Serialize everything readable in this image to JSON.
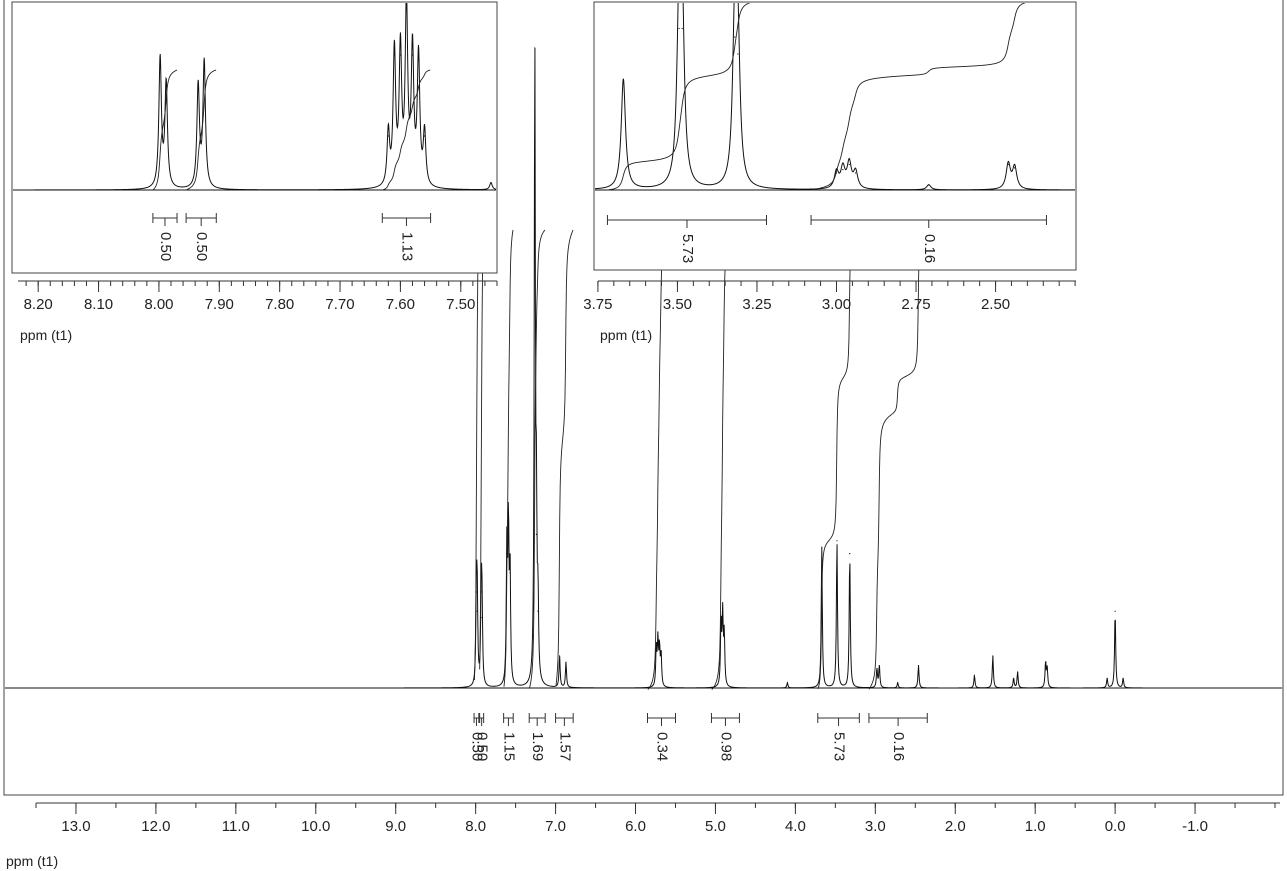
{
  "chart_data": [
    {
      "id": "main",
      "type": "line",
      "title": "",
      "xlabel": "ppm (t1)",
      "ylabel": "",
      "x_reversed": true,
      "xlim": [
        13.5,
        -2.0
      ],
      "major_ticks": [
        13.0,
        12.0,
        11.0,
        10.0,
        9.0,
        8.0,
        7.0,
        6.0,
        5.0,
        4.0,
        3.0,
        2.0,
        1.0,
        0.0,
        -1.0
      ],
      "tick_labels": [
        "13.0",
        "12.0",
        "11.0",
        "10.0",
        "9.0",
        "8.0",
        "7.0",
        "6.0",
        "5.0",
        "4.0",
        "3.0",
        "2.0",
        "1.0",
        "0.0",
        "-1.0"
      ],
      "peaks": [
        {
          "ppm": 7.99,
          "height": 0.15
        },
        {
          "ppm": 7.98,
          "height": 0.12
        },
        {
          "ppm": 7.93,
          "height": 0.15
        },
        {
          "ppm": 7.92,
          "height": 0.11
        },
        {
          "ppm": 7.61,
          "height": 0.21
        },
        {
          "ppm": 7.59,
          "height": 0.25
        },
        {
          "ppm": 7.57,
          "height": 0.18
        },
        {
          "ppm": 7.26,
          "height": 1.0
        },
        {
          "ppm": 7.24,
          "height": 0.24
        },
        {
          "ppm": 7.22,
          "height": 0.12
        },
        {
          "ppm": 6.95,
          "height": 0.05
        },
        {
          "ppm": 6.87,
          "height": 0.04
        },
        {
          "ppm": 5.74,
          "height": 0.06
        },
        {
          "ppm": 5.72,
          "height": 0.07
        },
        {
          "ppm": 5.7,
          "height": 0.06
        },
        {
          "ppm": 5.68,
          "height": 0.05
        },
        {
          "ppm": 4.93,
          "height": 0.1
        },
        {
          "ppm": 4.91,
          "height": 0.11
        },
        {
          "ppm": 4.89,
          "height": 0.08
        },
        {
          "ppm": 4.1,
          "height": 0.008
        },
        {
          "ppm": 3.67,
          "height": 0.22
        },
        {
          "ppm": 3.48,
          "height": 0.23
        },
        {
          "ppm": 3.32,
          "height": 0.21
        },
        {
          "ppm": 2.98,
          "height": 0.03
        },
        {
          "ppm": 2.95,
          "height": 0.035
        },
        {
          "ppm": 2.72,
          "height": 0.008
        },
        {
          "ppm": 2.46,
          "height": 0.035
        },
        {
          "ppm": 1.76,
          "height": 0.02
        },
        {
          "ppm": 1.53,
          "height": 0.05
        },
        {
          "ppm": 1.27,
          "height": 0.015
        },
        {
          "ppm": 1.22,
          "height": 0.025
        },
        {
          "ppm": 0.87,
          "height": 0.04
        },
        {
          "ppm": 0.85,
          "height": 0.03
        },
        {
          "ppm": 0.1,
          "height": 0.015
        },
        {
          "ppm": 0.0,
          "height": 0.12
        },
        {
          "ppm": -0.1,
          "height": 0.015
        }
      ],
      "integrals": [
        {
          "from": 8.02,
          "to": 7.96,
          "value": "0.50"
        },
        {
          "from": 7.95,
          "to": 7.9,
          "value": "0.50"
        },
        {
          "from": 7.65,
          "to": 7.53,
          "value": "1.15"
        },
        {
          "from": 7.33,
          "to": 7.13,
          "value": "1.69"
        },
        {
          "from": 7.0,
          "to": 6.78,
          "value": "1.57"
        },
        {
          "from": 5.85,
          "to": 5.5,
          "value": "0.34"
        },
        {
          "from": 5.05,
          "to": 4.7,
          "value": "0.98"
        },
        {
          "from": 3.72,
          "to": 3.2,
          "value": "5.73"
        },
        {
          "from": 3.08,
          "to": 2.35,
          "value": "0.16"
        }
      ]
    },
    {
      "id": "inset-aromatic",
      "type": "line",
      "xlabel": "ppm (t1)",
      "x_reversed": true,
      "xlim": [
        8.25,
        7.44
      ],
      "major_ticks": [
        8.2,
        8.1,
        8.0,
        7.9,
        7.8,
        7.7,
        7.6,
        7.5
      ],
      "tick_labels": [
        "8.20",
        "8.10",
        "8.00",
        "7.90",
        "7.80",
        "7.70",
        "7.60",
        "7.50"
      ],
      "peaks": [
        {
          "ppm": 7.998,
          "height": 0.72
        },
        {
          "ppm": 7.988,
          "height": 0.58
        },
        {
          "ppm": 7.935,
          "height": 0.57
        },
        {
          "ppm": 7.925,
          "height": 0.7
        },
        {
          "ppm": 7.62,
          "height": 0.3
        },
        {
          "ppm": 7.61,
          "height": 0.75
        },
        {
          "ppm": 7.6,
          "height": 0.75
        },
        {
          "ppm": 7.59,
          "height": 1.0
        },
        {
          "ppm": 7.58,
          "height": 0.75
        },
        {
          "ppm": 7.57,
          "height": 0.72
        },
        {
          "ppm": 7.56,
          "height": 0.3
        },
        {
          "ppm": 7.45,
          "height": 0.04
        }
      ],
      "integrals": [
        {
          "from": 8.01,
          "to": 7.97,
          "value": "0.50"
        },
        {
          "from": 7.955,
          "to": 7.905,
          "value": "0.50"
        },
        {
          "from": 7.63,
          "to": 7.55,
          "value": "1.13"
        }
      ]
    },
    {
      "id": "inset-aliphatic",
      "type": "line",
      "xlabel": "ppm (t1)",
      "x_reversed": true,
      "xlim": [
        3.8,
        2.2
      ],
      "major_ticks": [
        3.75,
        3.5,
        3.25,
        3.0,
        2.75,
        2.5
      ],
      "tick_labels": [
        "3.75",
        "3.50",
        "3.25",
        "3.00",
        "2.75",
        "2.50"
      ],
      "peaks": [
        {
          "ppm": 3.67,
          "height": 0.65
        },
        {
          "ppm": 3.495,
          "height": 0.95
        },
        {
          "ppm": 3.485,
          "height": 0.95
        },
        {
          "ppm": 3.32,
          "height": 0.9
        },
        {
          "ppm": 3.31,
          "height": 0.8
        },
        {
          "ppm": 3.0,
          "height": 0.1
        },
        {
          "ppm": 2.98,
          "height": 0.12
        },
        {
          "ppm": 2.96,
          "height": 0.15
        },
        {
          "ppm": 2.94,
          "height": 0.1
        },
        {
          "ppm": 2.71,
          "height": 0.03
        },
        {
          "ppm": 2.46,
          "height": 0.15
        },
        {
          "ppm": 2.44,
          "height": 0.13
        }
      ],
      "integrals": [
        {
          "from": 3.72,
          "to": 3.22,
          "value": "5.73"
        },
        {
          "from": 3.08,
          "to": 2.34,
          "value": "0.16"
        }
      ]
    }
  ]
}
